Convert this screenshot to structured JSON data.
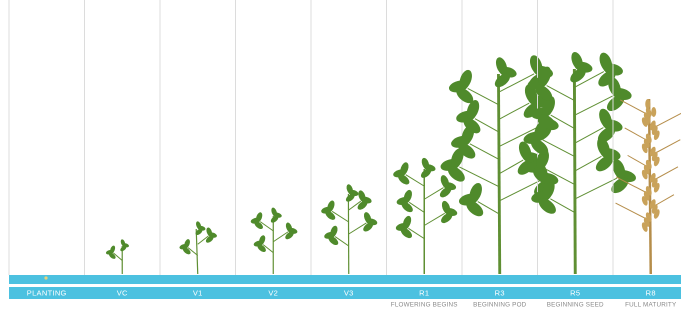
{
  "stages": [
    {
      "label": "PLANTING"
    },
    {
      "label": "VC"
    },
    {
      "label": "V1"
    },
    {
      "label": "V2"
    },
    {
      "label": "V3"
    },
    {
      "label": "R1",
      "description": "FLOWERING BEGINS"
    },
    {
      "label": "R3",
      "description": "BEGINNING POD"
    },
    {
      "label": "R5",
      "description": "BEGINNING SEED"
    },
    {
      "label": "R8",
      "description": "FULL MATURITY"
    }
  ]
}
